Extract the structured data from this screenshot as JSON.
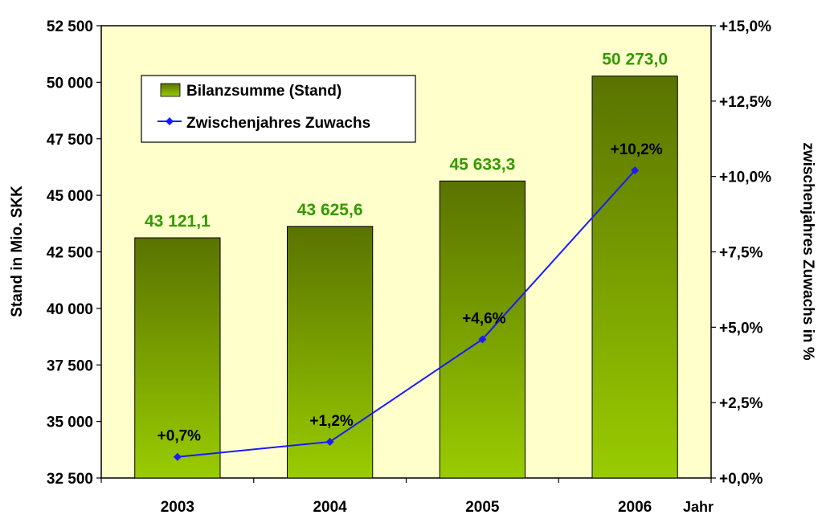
{
  "chart_data": {
    "type": "bar",
    "categories": [
      "2003",
      "2004",
      "2005",
      "2006"
    ],
    "xlabel": "Jahr",
    "ylabel": "Stand in Mio. SKK",
    "y2label": "zwischenjahres Zuwachs in %",
    "ylim": [
      32500,
      52500
    ],
    "y_ticks": [
      32500,
      35000,
      37500,
      40000,
      42500,
      45000,
      47500,
      50000,
      52500
    ],
    "y_tick_labels": [
      "32 500",
      "35 000",
      "37 500",
      "40 000",
      "42 500",
      "45 000",
      "47 500",
      "50 000",
      "52 500"
    ],
    "y2lim": [
      0,
      15
    ],
    "y2_ticks": [
      0,
      2.5,
      5,
      7.5,
      10,
      12.5,
      15
    ],
    "y2_tick_labels": [
      "+0,0%",
      "+2,5%",
      "+5,0%",
      "+7,5%",
      "+10,0%",
      "+12,5%",
      "+15,0%"
    ],
    "series": [
      {
        "name": "Bilanzsumme (Stand)",
        "kind": "bar",
        "axis": "left",
        "values": [
          43121.1,
          43625.6,
          45633.3,
          50273.0
        ],
        "labels": [
          "43 121,1",
          "43 625,6",
          "45 633,3",
          "50 273,0"
        ],
        "color_top": "#5a7300",
        "color_bottom": "#99cc00",
        "label_color": "#339900"
      },
      {
        "name": "Zwischenjahres Zuwachs",
        "kind": "line",
        "axis": "right",
        "values": [
          0.7,
          1.2,
          4.6,
          10.2
        ],
        "labels": [
          "+0,7%",
          "+1,2%",
          "+4,6%",
          "+10,2%"
        ],
        "color": "#1a1aff"
      }
    ],
    "legend": {
      "position": "top-left",
      "entries": [
        "Bilanzsumme (Stand)",
        "Zwischenjahres Zuwachs"
      ]
    },
    "plot_background": "#ffffcc",
    "grid": false
  }
}
